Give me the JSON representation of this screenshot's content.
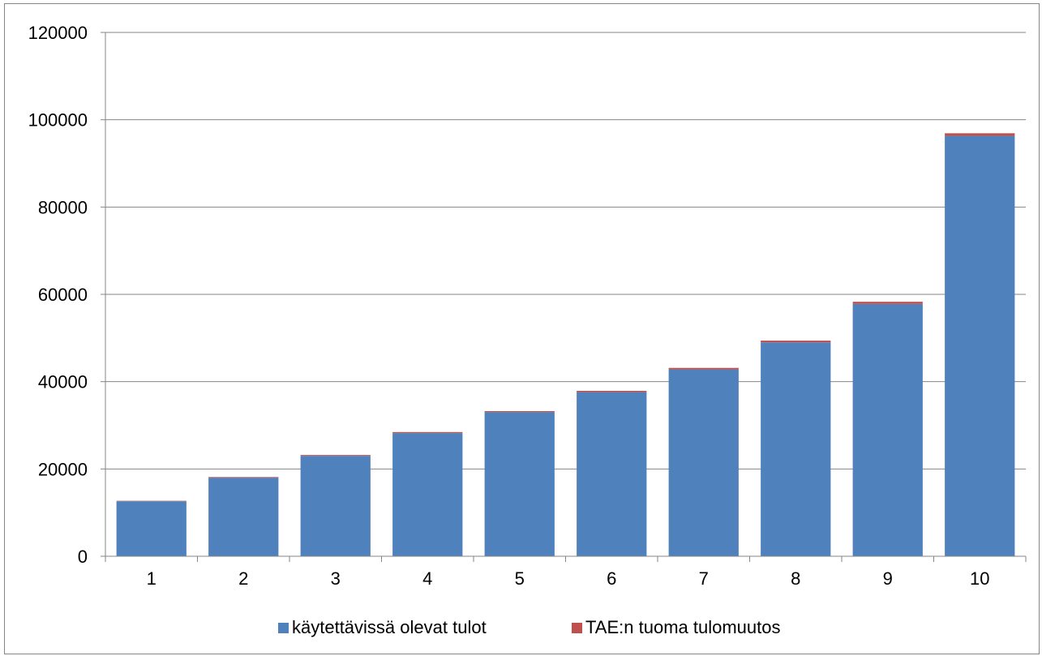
{
  "chart_data": {
    "type": "bar",
    "stacked": true,
    "categories": [
      "1",
      "2",
      "3",
      "4",
      "5",
      "6",
      "7",
      "8",
      "9",
      "10"
    ],
    "series": [
      {
        "name": "käytettävissä olevat tulot",
        "color": "#4f81bd",
        "values": [
          12600,
          18000,
          23000,
          28200,
          33000,
          37600,
          42800,
          49000,
          57800,
          96300
        ]
      },
      {
        "name": "TAE:n tuoma tulomuutos",
        "color": "#c0504d",
        "values": [
          100,
          150,
          200,
          250,
          250,
          300,
          350,
          400,
          500,
          600
        ]
      }
    ],
    "ylim": [
      0,
      120000
    ],
    "yticks": [
      0,
      20000,
      40000,
      60000,
      80000,
      100000,
      120000
    ],
    "grid": true,
    "legend_position": "bottom"
  }
}
